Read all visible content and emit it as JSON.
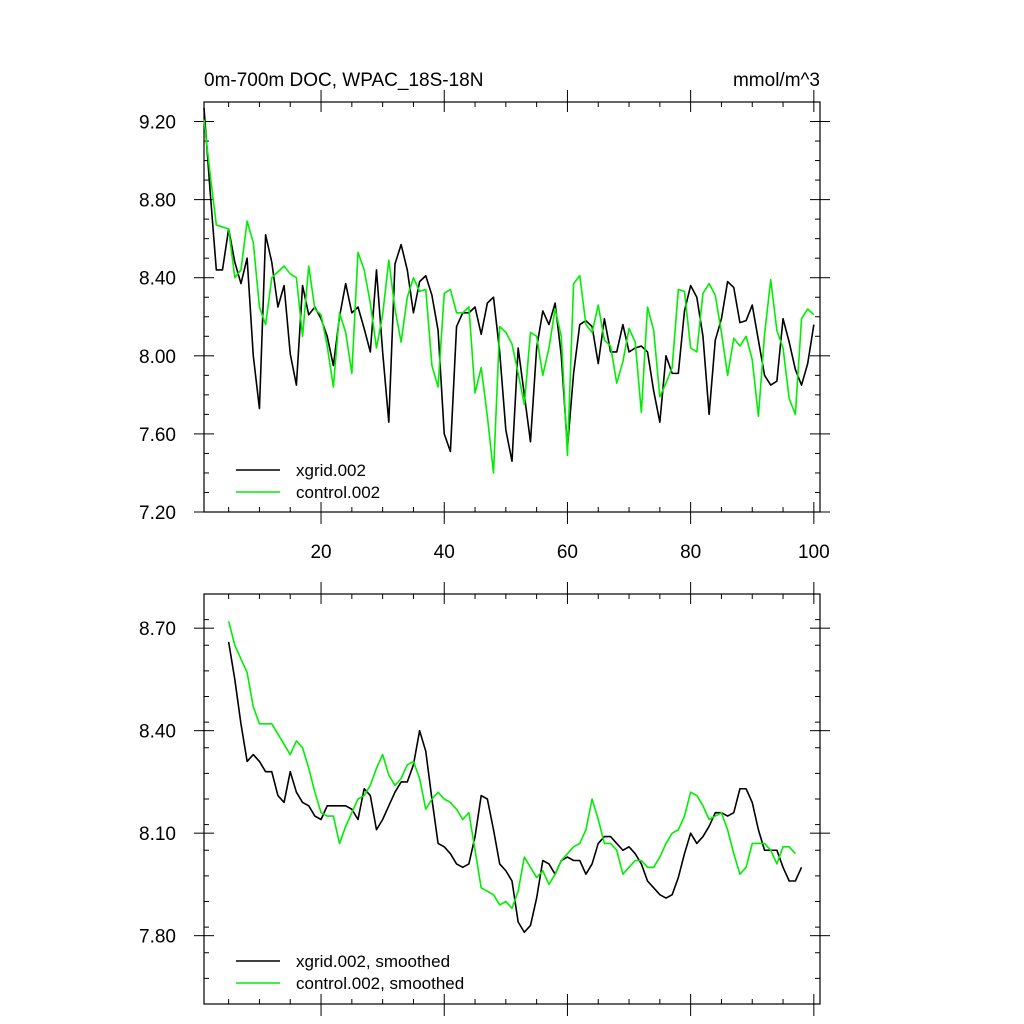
{
  "chart_data": [
    {
      "type": "line",
      "title": "0m-700m DOC, WPAC_18S-18N",
      "units": "mmol/m^3",
      "xlim": [
        1,
        101
      ],
      "ylim": [
        7.2,
        9.3
      ],
      "xticks": [
        20,
        40,
        60,
        80,
        100
      ],
      "yticks": [
        7.2,
        7.6,
        8.0,
        8.4,
        8.8,
        9.2
      ],
      "ytick_labels": [
        "7.20",
        "7.60",
        "8.00",
        "8.40",
        "8.80",
        "9.20"
      ],
      "legend": "bottom-left",
      "series": [
        {
          "name": "xgrid.002",
          "color": "#000000",
          "x_start": 1,
          "values": [
            9.27,
            8.84,
            8.44,
            8.44,
            8.65,
            8.48,
            8.37,
            8.5,
            8.0,
            7.73,
            8.62,
            8.48,
            8.25,
            8.36,
            8.01,
            7.85,
            8.36,
            8.21,
            8.25,
            8.19,
            8.1,
            7.95,
            8.2,
            8.37,
            8.22,
            8.25,
            8.14,
            8.02,
            8.44,
            8.02,
            7.66,
            8.47,
            8.57,
            8.44,
            8.22,
            8.38,
            8.41,
            8.31,
            8.13,
            7.6,
            7.51,
            8.15,
            8.22,
            8.22,
            8.25,
            8.11,
            8.27,
            8.3,
            8.02,
            7.62,
            7.46,
            8.04,
            7.8,
            7.56,
            8.04,
            8.23,
            8.16,
            8.27,
            8.0,
            7.53,
            7.91,
            8.16,
            8.18,
            8.15,
            7.96,
            8.19,
            8.02,
            8.02,
            8.16,
            8.02,
            8.04,
            8.05,
            8.02,
            7.82,
            7.66,
            8.0,
            7.91,
            7.91,
            8.23,
            8.36,
            8.3,
            8.1,
            7.7,
            8.08,
            8.19,
            8.38,
            8.35,
            8.17,
            8.18,
            8.26,
            8.08,
            7.9,
            7.85,
            7.87,
            8.19,
            8.07,
            7.93,
            7.85,
            7.96,
            8.16
          ]
        },
        {
          "name": "control.002",
          "color": "#00ee00",
          "x_start": 1,
          "values": [
            9.21,
            8.93,
            8.67,
            8.66,
            8.65,
            8.4,
            8.44,
            8.69,
            8.58,
            8.25,
            8.16,
            8.4,
            8.43,
            8.46,
            8.42,
            8.4,
            8.1,
            8.46,
            8.24,
            8.21,
            8.05,
            7.84,
            8.22,
            8.12,
            7.91,
            8.53,
            8.44,
            8.27,
            8.04,
            8.21,
            8.49,
            8.24,
            8.07,
            8.3,
            8.4,
            8.33,
            8.34,
            7.95,
            7.84,
            8.32,
            8.34,
            8.22,
            8.22,
            8.25,
            7.81,
            7.94,
            7.69,
            7.4,
            8.15,
            8.12,
            8.06,
            7.91,
            7.75,
            8.12,
            8.1,
            7.9,
            8.04,
            8.24,
            8.1,
            7.49,
            8.37,
            8.41,
            8.16,
            8.12,
            8.26,
            8.08,
            8.05,
            7.86,
            7.97,
            8.14,
            8.07,
            7.71,
            8.25,
            8.13,
            7.79,
            7.86,
            7.94,
            8.34,
            8.33,
            8.04,
            8.02,
            8.32,
            8.37,
            8.31,
            8.12,
            7.9,
            8.09,
            8.05,
            8.1,
            7.98,
            7.69,
            8.11,
            8.39,
            8.13,
            8.04,
            7.78,
            7.7,
            8.19,
            8.24,
            8.21
          ]
        }
      ]
    },
    {
      "type": "line",
      "title": "",
      "xlim": [
        1,
        101
      ],
      "ylim": [
        7.6,
        8.8
      ],
      "xticks": [
        20,
        40,
        60,
        80,
        100
      ],
      "yticks": [
        7.8,
        8.1,
        8.4,
        8.7
      ],
      "ytick_labels": [
        "7.80",
        "8.10",
        "8.40",
        "8.70"
      ],
      "legend": "bottom-left",
      "series": [
        {
          "name": "xgrid.002, smoothed",
          "color": "#000000",
          "x_start": 5,
          "values": [
            8.66,
            8.55,
            8.42,
            8.31,
            8.33,
            8.31,
            8.28,
            8.28,
            8.21,
            8.19,
            8.28,
            8.22,
            8.19,
            8.18,
            8.15,
            8.14,
            8.18,
            8.18,
            8.18,
            8.18,
            8.17,
            8.14,
            8.23,
            8.21,
            8.11,
            8.14,
            8.18,
            8.22,
            8.25,
            8.25,
            8.3,
            8.4,
            8.34,
            8.2,
            8.07,
            8.06,
            8.04,
            8.01,
            8.0,
            8.01,
            8.09,
            8.21,
            8.2,
            8.11,
            8.01,
            7.99,
            7.96,
            7.84,
            7.81,
            7.83,
            7.91,
            8.02,
            8.01,
            7.98,
            8.02,
            8.03,
            8.02,
            8.02,
            7.98,
            8.01,
            8.07,
            8.09,
            8.09,
            8.07,
            8.05,
            8.06,
            8.04,
            8.01,
            7.96,
            7.94,
            7.92,
            7.91,
            7.92,
            7.97,
            8.04,
            8.1,
            8.07,
            8.09,
            8.12,
            8.16,
            8.16,
            8.15,
            8.16,
            8.23,
            8.23,
            8.19,
            8.11,
            8.05,
            8.05,
            8.05,
            8.0,
            7.96,
            7.96,
            8.0
          ]
        },
        {
          "name": "control.002, smoothed",
          "color": "#00ee00",
          "x_start": 5,
          "values": [
            8.72,
            8.65,
            8.61,
            8.57,
            8.47,
            8.42,
            8.42,
            8.42,
            8.39,
            8.36,
            8.33,
            8.37,
            8.35,
            8.29,
            8.22,
            8.16,
            8.15,
            8.15,
            8.07,
            8.12,
            8.16,
            8.2,
            8.21,
            8.24,
            8.29,
            8.33,
            8.27,
            8.24,
            8.26,
            8.3,
            8.31,
            8.26,
            8.17,
            8.2,
            8.22,
            8.2,
            8.19,
            8.17,
            8.14,
            8.16,
            8.05,
            7.94,
            7.93,
            7.92,
            7.89,
            7.9,
            7.88,
            7.93,
            8.03,
            8.0,
            7.97,
            7.99,
            7.95,
            7.98,
            8.02,
            8.04,
            8.06,
            8.07,
            8.11,
            8.2,
            8.14,
            8.07,
            8.07,
            8.05,
            7.98,
            8.0,
            8.02,
            8.02,
            8.0,
            8.0,
            8.03,
            8.07,
            8.1,
            8.11,
            8.15,
            8.22,
            8.21,
            8.18,
            8.14,
            8.15,
            8.16,
            8.11,
            8.04,
            7.98,
            8.0,
            8.07,
            8.07,
            8.07,
            8.05,
            8.01,
            8.06,
            8.06,
            8.04
          ]
        }
      ]
    }
  ]
}
